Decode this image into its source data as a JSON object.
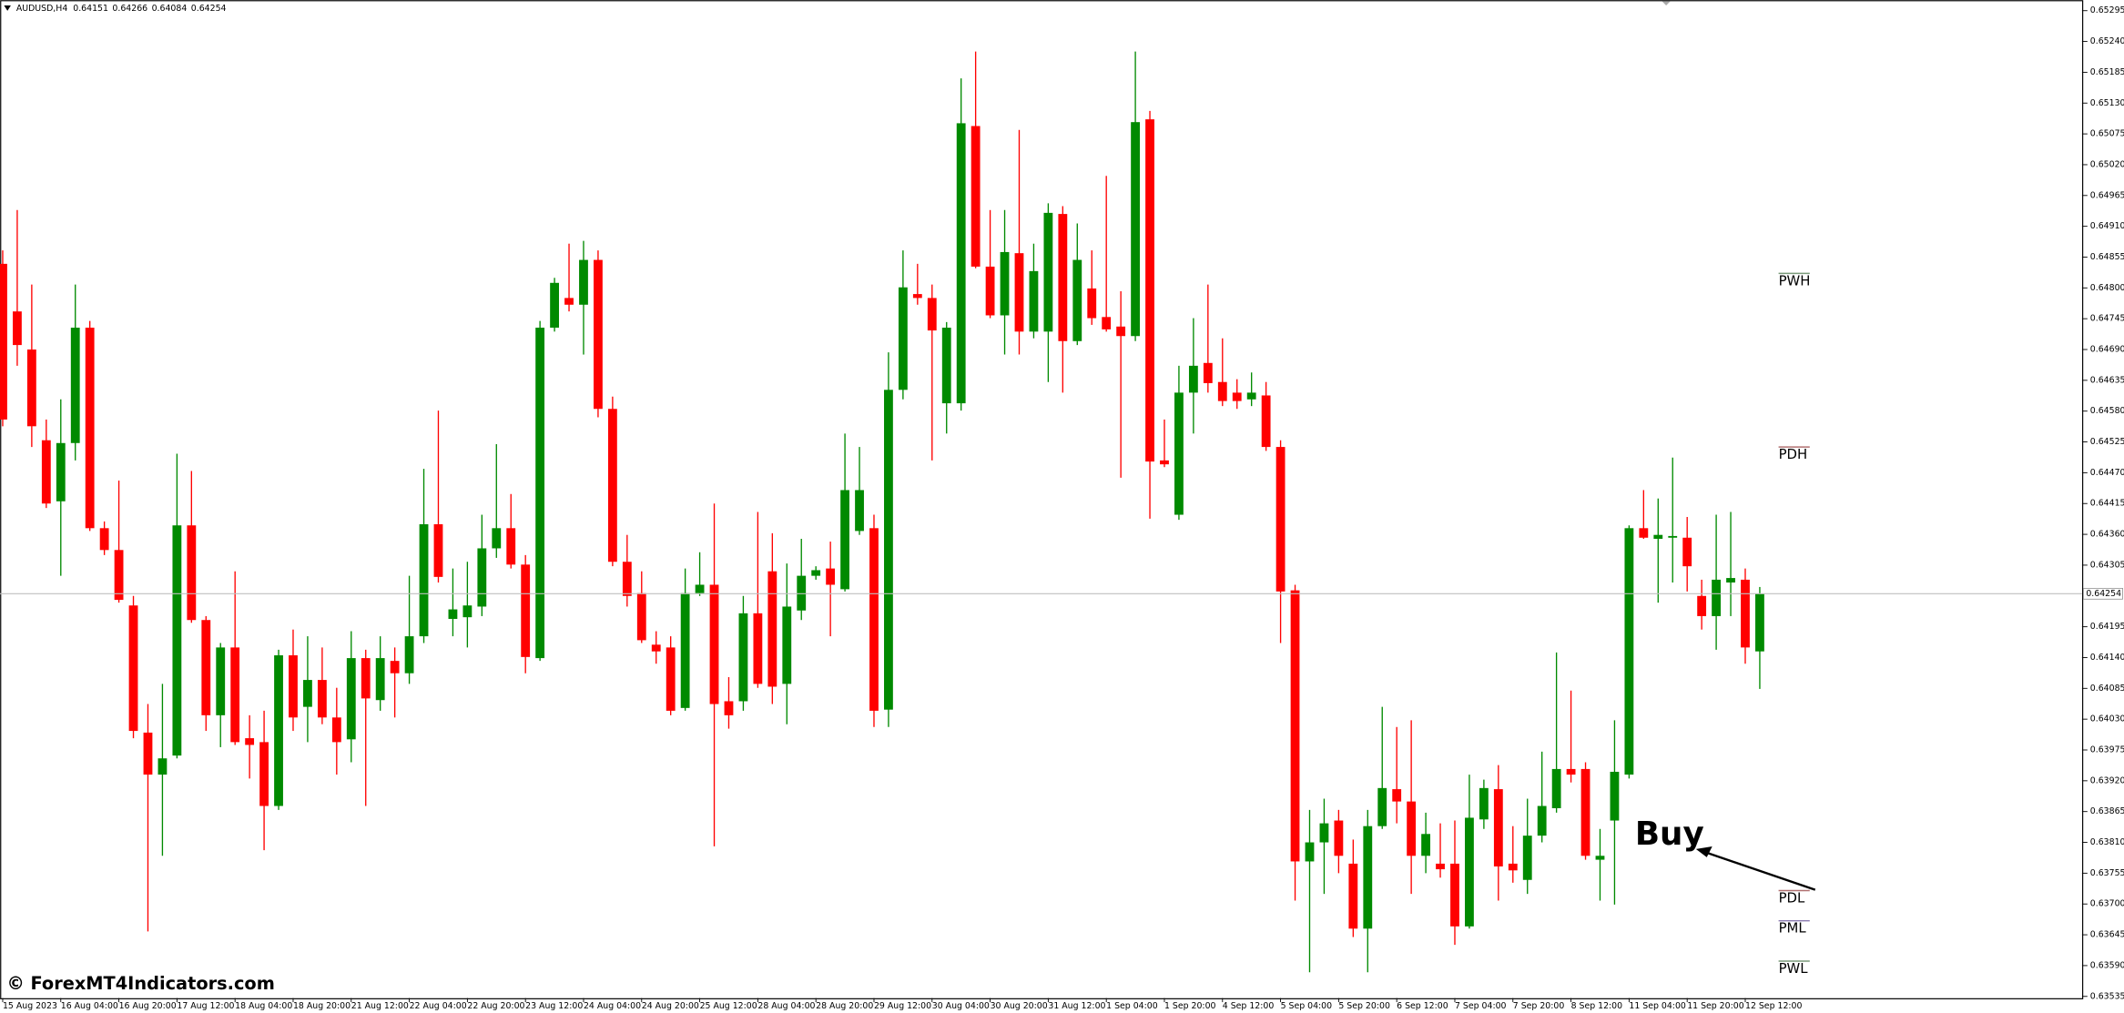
{
  "chart_data": {
    "type": "candlestick",
    "title": "AUDUSD,H4",
    "up_color": "#008a00",
    "down_color": "#ff0000",
    "ylim": [
      0.63532,
      0.65314
    ],
    "yticks": [
      0.65295,
      {
        "value": 0.6524,
        "label": "0.65240"
      },
      0.65185,
      {
        "value": 0.6513,
        "label": "0.65130"
      },
      0.65075,
      {
        "value": 0.6502,
        "label": "0.65020"
      },
      0.64965,
      {
        "value": 0.6491,
        "label": "0.64910"
      },
      0.64855,
      {
        "value": 0.648,
        "label": "0.64800"
      },
      0.64745,
      {
        "value": 0.6469,
        "label": "0.64690"
      },
      0.64635,
      {
        "value": 0.6458,
        "label": "0.64580"
      },
      0.64525,
      {
        "value": 0.6447,
        "label": "0.64470"
      },
      0.64415,
      {
        "value": 0.6436,
        "label": "0.64360"
      },
      0.64305,
      0.64195,
      {
        "value": 0.6414,
        "label": "0.64140"
      },
      0.64085,
      {
        "value": 0.6403,
        "label": "0.64030"
      },
      0.63975,
      {
        "value": 0.6392,
        "label": "0.63920"
      },
      0.63865,
      {
        "value": 0.6381,
        "label": "0.63810"
      },
      0.63755,
      {
        "value": 0.637,
        "label": "0.63700"
      },
      0.63645,
      {
        "value": 0.6359,
        "label": "0.63590"
      },
      0.63535
    ],
    "categories": [
      "15 Aug 2023",
      null,
      null,
      null,
      "16 Aug 04:00",
      null,
      null,
      null,
      "16 Aug 20:00",
      null,
      null,
      null,
      "17 Aug 12:00",
      null,
      null,
      null,
      "18 Aug 04:00",
      null,
      null,
      null,
      "18 Aug 20:00",
      null,
      null,
      null,
      "21 Aug 12:00",
      null,
      null,
      null,
      "22 Aug 04:00",
      null,
      null,
      null,
      "22 Aug 20:00",
      null,
      null,
      null,
      "23 Aug 12:00",
      null,
      null,
      null,
      "24 Aug 04:00",
      null,
      null,
      null,
      "24 Aug 20:00",
      null,
      null,
      null,
      "25 Aug 12:00",
      null,
      null,
      null,
      "28 Aug 04:00",
      null,
      null,
      null,
      "28 Aug 20:00",
      null,
      null,
      null,
      "29 Aug 12:00",
      null,
      null,
      null,
      "30 Aug 04:00",
      null,
      null,
      null,
      "30 Aug 20:00",
      null,
      null,
      null,
      "31 Aug 12:00",
      null,
      null,
      null,
      "1 Sep 04:00",
      null,
      null,
      null,
      "1 Sep 20:00",
      null,
      null,
      null,
      "4 Sep 12:00",
      null,
      null,
      null,
      "5 Sep 04:00",
      null,
      null,
      null,
      "5 Sep 20:00",
      null,
      null,
      null,
      "6 Sep 12:00",
      null,
      null,
      null,
      "7 Sep 04:00",
      null,
      null,
      null,
      "7 Sep 20:00",
      null,
      null,
      null,
      "8 Sep 12:00",
      null,
      null,
      null,
      "11 Sep 04:00",
      null,
      null,
      null,
      "11 Sep 20:00",
      null,
      null,
      null,
      "12 Sep 12:00",
      null
    ],
    "candles": [
      [
        0.64843,
        0.64867,
        0.64553,
        0.64565
      ],
      [
        0.64758,
        0.64939,
        0.64661,
        0.64698
      ],
      [
        0.6469,
        0.64806,
        0.64516,
        0.64553
      ],
      [
        0.64528,
        0.64565,
        0.64407,
        0.64415
      ],
      [
        0.64419,
        0.64601,
        0.64286,
        0.64523
      ],
      [
        0.64523,
        0.64806,
        0.64492,
        0.64729
      ],
      [
        0.64729,
        0.64741,
        0.64366,
        0.64371
      ],
      [
        0.64371,
        0.64383,
        0.64323,
        0.64332
      ],
      [
        0.64332,
        0.64456,
        0.64238,
        0.64243
      ],
      [
        0.64233,
        0.6425,
        0.63996,
        0.64009
      ],
      [
        0.64006,
        0.64057,
        0.63651,
        0.63931
      ],
      [
        0.63931,
        0.64093,
        0.63786,
        0.6396
      ],
      [
        0.63965,
        0.64504,
        0.6396,
        0.64376
      ],
      [
        0.64376,
        0.64473,
        0.64202,
        0.64207
      ],
      [
        0.64207,
        0.64214,
        0.64009,
        0.64037
      ],
      [
        0.64037,
        0.64166,
        0.6398,
        0.64158
      ],
      [
        0.64158,
        0.64294,
        0.63984,
        0.63989
      ],
      [
        0.63996,
        0.64037,
        0.63924,
        0.63984
      ],
      [
        0.63989,
        0.64045,
        0.63796,
        0.63875
      ],
      [
        0.63875,
        0.64154,
        0.63868,
        0.64144
      ],
      [
        0.64144,
        0.6419,
        0.64009,
        0.64033
      ],
      [
        0.64052,
        0.64178,
        0.63989,
        0.641
      ],
      [
        0.641,
        0.64158,
        0.64021,
        0.64033
      ],
      [
        0.64033,
        0.64086,
        0.63931,
        0.63989
      ],
      [
        0.63994,
        0.64187,
        0.63953,
        0.64139
      ],
      [
        0.64139,
        0.64154,
        0.63875,
        0.64067
      ],
      [
        0.64064,
        0.64178,
        0.64045,
        0.64139
      ],
      [
        0.64134,
        0.64158,
        0.64033,
        0.64112
      ],
      [
        0.64112,
        0.64286,
        0.64093,
        0.64178
      ],
      [
        0.64178,
        0.64477,
        0.64166,
        0.64378
      ],
      [
        0.64378,
        0.64581,
        0.64274,
        0.64284
      ],
      [
        0.64209,
        0.64299,
        0.64178,
        0.64226
      ],
      [
        0.64212,
        0.64311,
        0.64158,
        0.64233
      ],
      [
        0.64231,
        0.64395,
        0.64214,
        0.64335
      ],
      [
        0.64335,
        0.64521,
        0.64318,
        0.64371
      ],
      [
        0.64371,
        0.64432,
        0.64299,
        0.64306
      ],
      [
        0.64306,
        0.64323,
        0.64112,
        0.64141
      ],
      [
        0.64139,
        0.64741,
        0.64134,
        0.64729
      ],
      [
        0.64729,
        0.64818,
        0.64722,
        0.64809
      ],
      [
        0.64782,
        0.64879,
        0.64758,
        0.6477
      ],
      [
        0.6477,
        0.64884,
        0.64681,
        0.6485
      ],
      [
        0.6485,
        0.64867,
        0.64569,
        0.64584
      ],
      [
        0.64584,
        0.64606,
        0.64303,
        0.64311
      ],
      [
        0.64311,
        0.64359,
        0.64231,
        0.6425
      ],
      [
        0.64255,
        0.64294,
        0.64166,
        0.64171
      ],
      [
        0.64163,
        0.64187,
        0.64129,
        0.64151
      ],
      [
        0.64158,
        0.64178,
        0.64037,
        0.64045
      ],
      [
        0.6405,
        0.64299,
        0.64045,
        0.64255
      ],
      [
        0.64255,
        0.64328,
        0.6425,
        0.6427
      ],
      [
        0.6427,
        0.64415,
        0.63803,
        0.64057
      ],
      [
        0.64062,
        0.64105,
        0.64013,
        0.64037
      ],
      [
        0.64062,
        0.6425,
        0.64045,
        0.64219
      ],
      [
        0.64219,
        0.644,
        0.64086,
        0.64093
      ],
      [
        0.64294,
        0.64362,
        0.64057,
        0.64088
      ],
      [
        0.64093,
        0.64308,
        0.64021,
        0.64231
      ],
      [
        0.64224,
        0.64352,
        0.64207,
        0.64286
      ],
      [
        0.64286,
        0.64303,
        0.64279,
        0.64296
      ],
      [
        0.64299,
        0.64347,
        0.64178,
        0.6427
      ],
      [
        0.64262,
        0.6454,
        0.64258,
        0.64439
      ],
      [
        0.64366,
        0.64516,
        0.64359,
        0.64439
      ],
      [
        0.64371,
        0.64395,
        0.64016,
        0.64045
      ],
      [
        0.64047,
        0.64685,
        0.64016,
        0.64618
      ],
      [
        0.64618,
        0.64867,
        0.64601,
        0.64801
      ],
      [
        0.64789,
        0.64843,
        0.6477,
        0.64782
      ],
      [
        0.64782,
        0.64806,
        0.64492,
        0.64724
      ],
      [
        0.64594,
        0.64739,
        0.6454,
        0.64729
      ],
      [
        0.64594,
        0.65174,
        0.64581,
        0.65094
      ],
      [
        0.65089,
        0.65222,
        0.64835,
        0.64838
      ],
      [
        0.64838,
        0.64939,
        0.64746,
        0.64751
      ],
      [
        0.64751,
        0.64939,
        0.64681,
        0.64864
      ],
      [
        0.64862,
        0.65082,
        0.64681,
        0.64722
      ],
      [
        0.64722,
        0.64879,
        0.6471,
        0.6483
      ],
      [
        0.64722,
        0.64951,
        0.64632,
        0.64934
      ],
      [
        0.64932,
        0.64946,
        0.64613,
        0.64705
      ],
      [
        0.64705,
        0.64915,
        0.64698,
        0.6485
      ],
      [
        0.64799,
        0.64867,
        0.64734,
        0.64746
      ],
      [
        0.64748,
        0.65,
        0.64722,
        0.64726
      ],
      [
        0.64731,
        0.64794,
        0.64461,
        0.64714
      ],
      [
        0.64714,
        0.65222,
        0.64705,
        0.65096
      ],
      [
        0.65101,
        0.65116,
        0.64388,
        0.6449
      ],
      [
        0.64492,
        0.64565,
        0.6448,
        0.64485
      ],
      [
        0.64395,
        0.64661,
        0.64386,
        0.64613
      ],
      [
        0.64613,
        0.64746,
        0.6454,
        0.64661
      ],
      [
        0.64666,
        0.64806,
        0.64613,
        0.6463
      ],
      [
        0.64632,
        0.6471,
        0.64589,
        0.64598
      ],
      [
        0.64613,
        0.64637,
        0.64584,
        0.64598
      ],
      [
        0.64601,
        0.64649,
        0.64589,
        0.64613
      ],
      [
        0.64608,
        0.64632,
        0.64509,
        0.64516
      ],
      [
        0.64516,
        0.64528,
        0.64166,
        0.64258
      ],
      [
        0.6426,
        0.6427,
        0.63706,
        0.63776
      ],
      [
        0.63776,
        0.63868,
        0.63578,
        0.6381
      ],
      [
        0.6381,
        0.63888,
        0.63718,
        0.63844
      ],
      [
        0.63849,
        0.63868,
        0.63755,
        0.63786
      ],
      [
        0.63772,
        0.63815,
        0.63641,
        0.63656
      ],
      [
        0.63656,
        0.63868,
        0.63578,
        0.63839
      ],
      [
        0.63839,
        0.64052,
        0.63834,
        0.63907
      ],
      [
        0.63905,
        0.64016,
        0.63844,
        0.63883
      ],
      [
        0.63883,
        0.64028,
        0.63718,
        0.63786
      ],
      [
        0.63786,
        0.63863,
        0.63755,
        0.63825
      ],
      [
        0.63772,
        0.63844,
        0.63747,
        0.63762
      ],
      [
        0.63772,
        0.63849,
        0.63627,
        0.6366
      ],
      [
        0.6366,
        0.63931,
        0.63656,
        0.63854
      ],
      [
        0.63851,
        0.63922,
        0.63834,
        0.63907
      ],
      [
        0.63905,
        0.63948,
        0.63706,
        0.63767
      ],
      [
        0.63772,
        0.63839,
        0.63738,
        0.6376
      ],
      [
        0.63743,
        0.63888,
        0.63718,
        0.63822
      ],
      [
        0.63822,
        0.63972,
        0.6381,
        0.63875
      ],
      [
        0.63871,
        0.64149,
        0.63863,
        0.63941
      ],
      [
        0.63941,
        0.64081,
        0.63917,
        0.63931
      ],
      [
        0.63941,
        0.63953,
        0.63779,
        0.63786
      ],
      [
        0.63779,
        0.63834,
        0.63706,
        0.63786
      ],
      [
        0.63849,
        0.64028,
        0.63699,
        0.63936
      ],
      [
        0.63931,
        0.64376,
        0.63924,
        0.64371
      ],
      [
        0.64371,
        0.64439,
        0.64352,
        0.64354
      ],
      [
        0.64352,
        0.64424,
        0.64238,
        0.64359
      ],
      [
        0.64354,
        0.64497,
        0.64274,
        0.64357
      ],
      [
        0.64354,
        0.64391,
        0.64258,
        0.64303
      ],
      [
        0.6425,
        0.64279,
        0.6419,
        0.64214
      ],
      [
        0.64214,
        0.64395,
        0.64154,
        0.64279
      ],
      [
        0.64274,
        0.644,
        0.64214,
        0.64282
      ],
      [
        0.64279,
        0.64299,
        0.64129,
        0.64158
      ],
      [
        0.64151,
        0.64266,
        0.64084,
        0.64254
      ]
    ],
    "levels": [
      {
        "label": "PWH",
        "value": 0.64826,
        "color": "#7a9a7a"
      },
      {
        "label": "PDH",
        "value": 0.64516,
        "color": "#b07070"
      },
      {
        "label": "PDL",
        "value": 0.63724,
        "color": "#b07070"
      },
      {
        "label": "PML",
        "value": 0.6367,
        "color": "#8a7ab0"
      },
      {
        "label": "PWL",
        "value": 0.63598,
        "color": "#7a9a7a"
      }
    ],
    "annotation": "Buy",
    "watermark": "© ForexMT4Indicators.com"
  }
}
